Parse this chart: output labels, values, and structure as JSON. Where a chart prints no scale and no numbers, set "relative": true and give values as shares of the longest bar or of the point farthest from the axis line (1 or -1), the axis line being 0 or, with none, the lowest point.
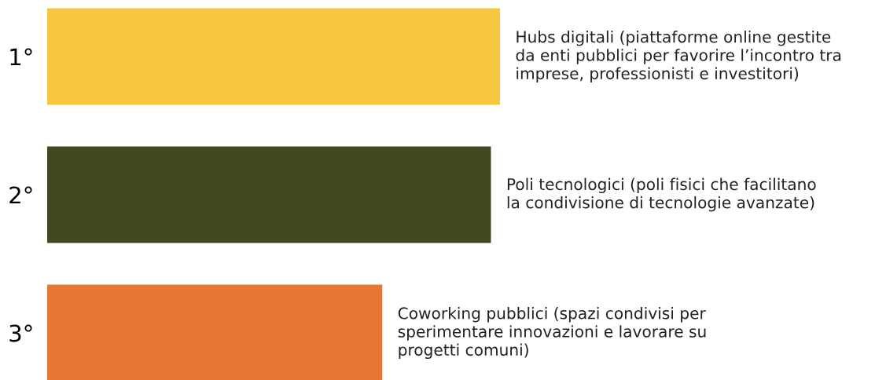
{
  "chart_data": {
    "type": "bar",
    "orientation": "horizontal",
    "relative": true,
    "categories": [
      "1°",
      "2°",
      "3°"
    ],
    "values": [
      1,
      0.98,
      0.74
    ],
    "colors": [
      "#f6c73d",
      "#414822",
      "#e77634"
    ],
    "annotations": [
      {
        "text": "Hubs digitali (piattaforme online gestite\nda enti pubblici per favorire l’incontro tra\nimprese, professionisti e investitori)",
        "x": 1,
        "y": "1°"
      },
      {
        "text": "Poli tecnologici (poli fisici che facilitano\nla condivisione di tecnologie avanzate)",
        "x": 0.98,
        "y": "2°"
      },
      {
        "text": "Coworking pubblici (spazi condivisi per\nsperimentare innovazioni e lavorare su\nprogetti comuni)",
        "x": 0.74,
        "y": "3°"
      }
    ]
  }
}
